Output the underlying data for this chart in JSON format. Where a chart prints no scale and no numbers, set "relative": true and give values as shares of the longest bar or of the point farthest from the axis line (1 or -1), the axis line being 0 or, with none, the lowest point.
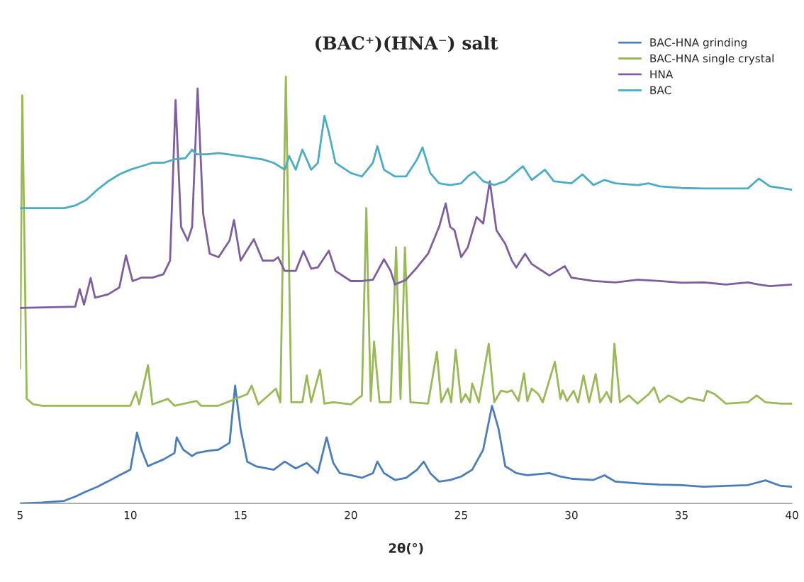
{
  "chart_data": {
    "type": "line",
    "title": "(BAC⁺)(HNA⁻) salt",
    "xlabel": "2θ(°)",
    "relative": true,
    "xlim": [
      5,
      40
    ],
    "xticks": [
      5,
      10,
      15,
      20,
      25,
      30,
      35,
      40
    ],
    "grid": false,
    "legend": "top right",
    "marker": "none",
    "line_style": "solid",
    "series": [
      {
        "name": "BAC-HNA grinding",
        "color": "#4a7ebb",
        "x": [
          5,
          6,
          7,
          7.5,
          8,
          8.5,
          9,
          9.5,
          10,
          10.3,
          10.5,
          10.8,
          11,
          11.5,
          12,
          12.1,
          12.4,
          12.8,
          13,
          13.5,
          14,
          14.5,
          14.75,
          15,
          15.3,
          15.7,
          16,
          16.5,
          17,
          17.5,
          18,
          18.5,
          18.9,
          19.2,
          19.5,
          20,
          20.5,
          21,
          21.2,
          21.5,
          22,
          22.5,
          23,
          23.3,
          23.6,
          24,
          24.5,
          25,
          25.5,
          26,
          26.4,
          26.7,
          27,
          27.5,
          28,
          29,
          29.5,
          30,
          31,
          31.5,
          32,
          33,
          34,
          35,
          36,
          37,
          38,
          38.8,
          39.5,
          40
        ],
        "values": [
          0,
          0.002,
          0.006,
          0.016,
          0.028,
          0.039,
          0.052,
          0.066,
          0.079,
          0.166,
          0.126,
          0.087,
          0.092,
          0.103,
          0.118,
          0.155,
          0.126,
          0.111,
          0.118,
          0.123,
          0.126,
          0.142,
          0.276,
          0.174,
          0.098,
          0.087,
          0.084,
          0.079,
          0.098,
          0.082,
          0.095,
          0.071,
          0.155,
          0.095,
          0.071,
          0.066,
          0.06,
          0.071,
          0.098,
          0.071,
          0.055,
          0.06,
          0.079,
          0.098,
          0.071,
          0.051,
          0.055,
          0.063,
          0.079,
          0.126,
          0.229,
          0.174,
          0.087,
          0.071,
          0.066,
          0.071,
          0.063,
          0.058,
          0.055,
          0.066,
          0.051,
          0.047,
          0.044,
          0.043,
          0.039,
          0.041,
          0.043,
          0.054,
          0.041,
          0.039
        ]
      },
      {
        "name": "BAC-HNA single crystal",
        "color": "#98b954",
        "x": [
          5,
          5.1,
          5.3,
          5.6,
          6,
          10,
          10.25,
          10.4,
          10.8,
          11,
          11.7,
          12,
          13,
          13.2,
          14,
          15.3,
          15.5,
          15.8,
          16.6,
          16.8,
          17.05,
          17.3,
          17.8,
          18,
          18.2,
          18.6,
          18.8,
          19.2,
          20,
          20.5,
          20.7,
          20.9,
          21.05,
          21.3,
          21.8,
          22.05,
          22.25,
          22.45,
          22.7,
          23.5,
          23.9,
          24.1,
          24.4,
          24.55,
          24.75,
          25,
          25.2,
          25.4,
          25.5,
          25.8,
          26.25,
          26.5,
          26.8,
          27.1,
          27.3,
          27.6,
          27.85,
          28,
          28.2,
          28.5,
          28.7,
          29.25,
          29.5,
          29.6,
          29.8,
          30.1,
          30.3,
          30.55,
          30.8,
          31.1,
          31.3,
          31.6,
          31.8,
          31.95,
          32.2,
          32.6,
          33,
          33.5,
          33.75,
          34,
          34.4,
          35,
          35.3,
          36,
          36.15,
          36.5,
          37,
          38,
          38.4,
          38.8,
          39.5,
          40
        ],
        "values": [
          0.316,
          0.956,
          0.245,
          0.232,
          0.229,
          0.229,
          0.261,
          0.232,
          0.324,
          0.232,
          0.245,
          0.229,
          0.24,
          0.229,
          0.229,
          0.256,
          0.276,
          0.232,
          0.269,
          0.237,
          1,
          0.237,
          0.237,
          0.3,
          0.237,
          0.313,
          0.234,
          0.237,
          0.232,
          0.253,
          0.692,
          0.24,
          0.379,
          0.237,
          0.237,
          0.6,
          0.245,
          0.6,
          0.237,
          0.234,
          0.355,
          0.237,
          0.269,
          0.237,
          0.36,
          0.237,
          0.256,
          0.237,
          0.281,
          0.237,
          0.374,
          0.237,
          0.264,
          0.261,
          0.265,
          0.24,
          0.305,
          0.24,
          0.269,
          0.256,
          0.237,
          0.332,
          0.245,
          0.265,
          0.24,
          0.264,
          0.237,
          0.3,
          0.237,
          0.303,
          0.237,
          0.261,
          0.237,
          0.374,
          0.237,
          0.253,
          0.234,
          0.256,
          0.272,
          0.237,
          0.253,
          0.237,
          0.248,
          0.24,
          0.264,
          0.256,
          0.234,
          0.237,
          0.253,
          0.237,
          0.234,
          0.234
        ]
      },
      {
        "name": "HNA",
        "color": "#7d5fa0",
        "x": [
          5,
          7.5,
          7.7,
          7.9,
          8.2,
          8.4,
          9,
          9.5,
          9.8,
          10.1,
          10.5,
          11,
          11.5,
          11.8,
          12.05,
          12.3,
          12.6,
          12.8,
          13.05,
          13.3,
          13.6,
          14,
          14.5,
          14.7,
          15,
          15.6,
          16,
          16.5,
          16.7,
          17,
          17.5,
          17.85,
          18.2,
          18.5,
          19,
          19.3,
          20,
          20.5,
          21,
          21.5,
          21.8,
          22,
          22.5,
          23,
          23.5,
          24,
          24.3,
          24.5,
          24.7,
          25,
          25.3,
          25.7,
          26,
          26.3,
          26.6,
          27,
          27.3,
          27.5,
          27.9,
          28.2,
          29,
          29.7,
          30,
          31,
          32,
          33,
          34,
          35,
          36,
          37,
          38,
          38.5,
          39,
          40
        ],
        "values": [
          0.458,
          0.461,
          0.502,
          0.466,
          0.528,
          0.482,
          0.49,
          0.506,
          0.581,
          0.521,
          0.529,
          0.529,
          0.537,
          0.569,
          0.945,
          0.648,
          0.616,
          0.648,
          0.972,
          0.679,
          0.585,
          0.577,
          0.616,
          0.664,
          0.569,
          0.619,
          0.569,
          0.569,
          0.577,
          0.545,
          0.545,
          0.591,
          0.55,
          0.553,
          0.592,
          0.545,
          0.521,
          0.521,
          0.524,
          0.572,
          0.545,
          0.513,
          0.524,
          0.553,
          0.585,
          0.648,
          0.703,
          0.648,
          0.64,
          0.577,
          0.6,
          0.671,
          0.656,
          0.755,
          0.64,
          0.608,
          0.569,
          0.553,
          0.585,
          0.561,
          0.534,
          0.556,
          0.529,
          0.521,
          0.518,
          0.524,
          0.521,
          0.517,
          0.518,
          0.513,
          0.518,
          0.513,
          0.509,
          0.513
        ]
      },
      {
        "name": "BAC",
        "color": "#4bacc6",
        "x": [
          5,
          7,
          7.5,
          8,
          8.5,
          9,
          9.5,
          10,
          10.5,
          11,
          11.5,
          12,
          12.5,
          12.8,
          13,
          13.5,
          14,
          15,
          16,
          16.5,
          17,
          17.2,
          17.5,
          17.8,
          18.2,
          18.5,
          18.8,
          19,
          19.3,
          20,
          20.5,
          21,
          21.2,
          21.5,
          22,
          22.5,
          23,
          23.25,
          23.6,
          24,
          24.5,
          25,
          25.3,
          25.6,
          26,
          26.5,
          27,
          27.8,
          28.2,
          28.8,
          29.2,
          30,
          30.5,
          31,
          31.5,
          32,
          33,
          33.5,
          34,
          35,
          36,
          37,
          38,
          38.5,
          39,
          40
        ],
        "values": [
          0.692,
          0.692,
          0.698,
          0.711,
          0.735,
          0.755,
          0.771,
          0.782,
          0.79,
          0.798,
          0.798,
          0.806,
          0.809,
          0.829,
          0.818,
          0.818,
          0.821,
          0.814,
          0.806,
          0.798,
          0.782,
          0.814,
          0.782,
          0.829,
          0.782,
          0.798,
          0.908,
          0.869,
          0.798,
          0.774,
          0.766,
          0.798,
          0.837,
          0.782,
          0.766,
          0.766,
          0.806,
          0.834,
          0.774,
          0.75,
          0.746,
          0.75,
          0.766,
          0.777,
          0.755,
          0.746,
          0.755,
          0.79,
          0.758,
          0.782,
          0.755,
          0.75,
          0.771,
          0.746,
          0.758,
          0.75,
          0.746,
          0.75,
          0.743,
          0.739,
          0.738,
          0.738,
          0.738,
          0.761,
          0.743,
          0.735
        ]
      }
    ]
  }
}
